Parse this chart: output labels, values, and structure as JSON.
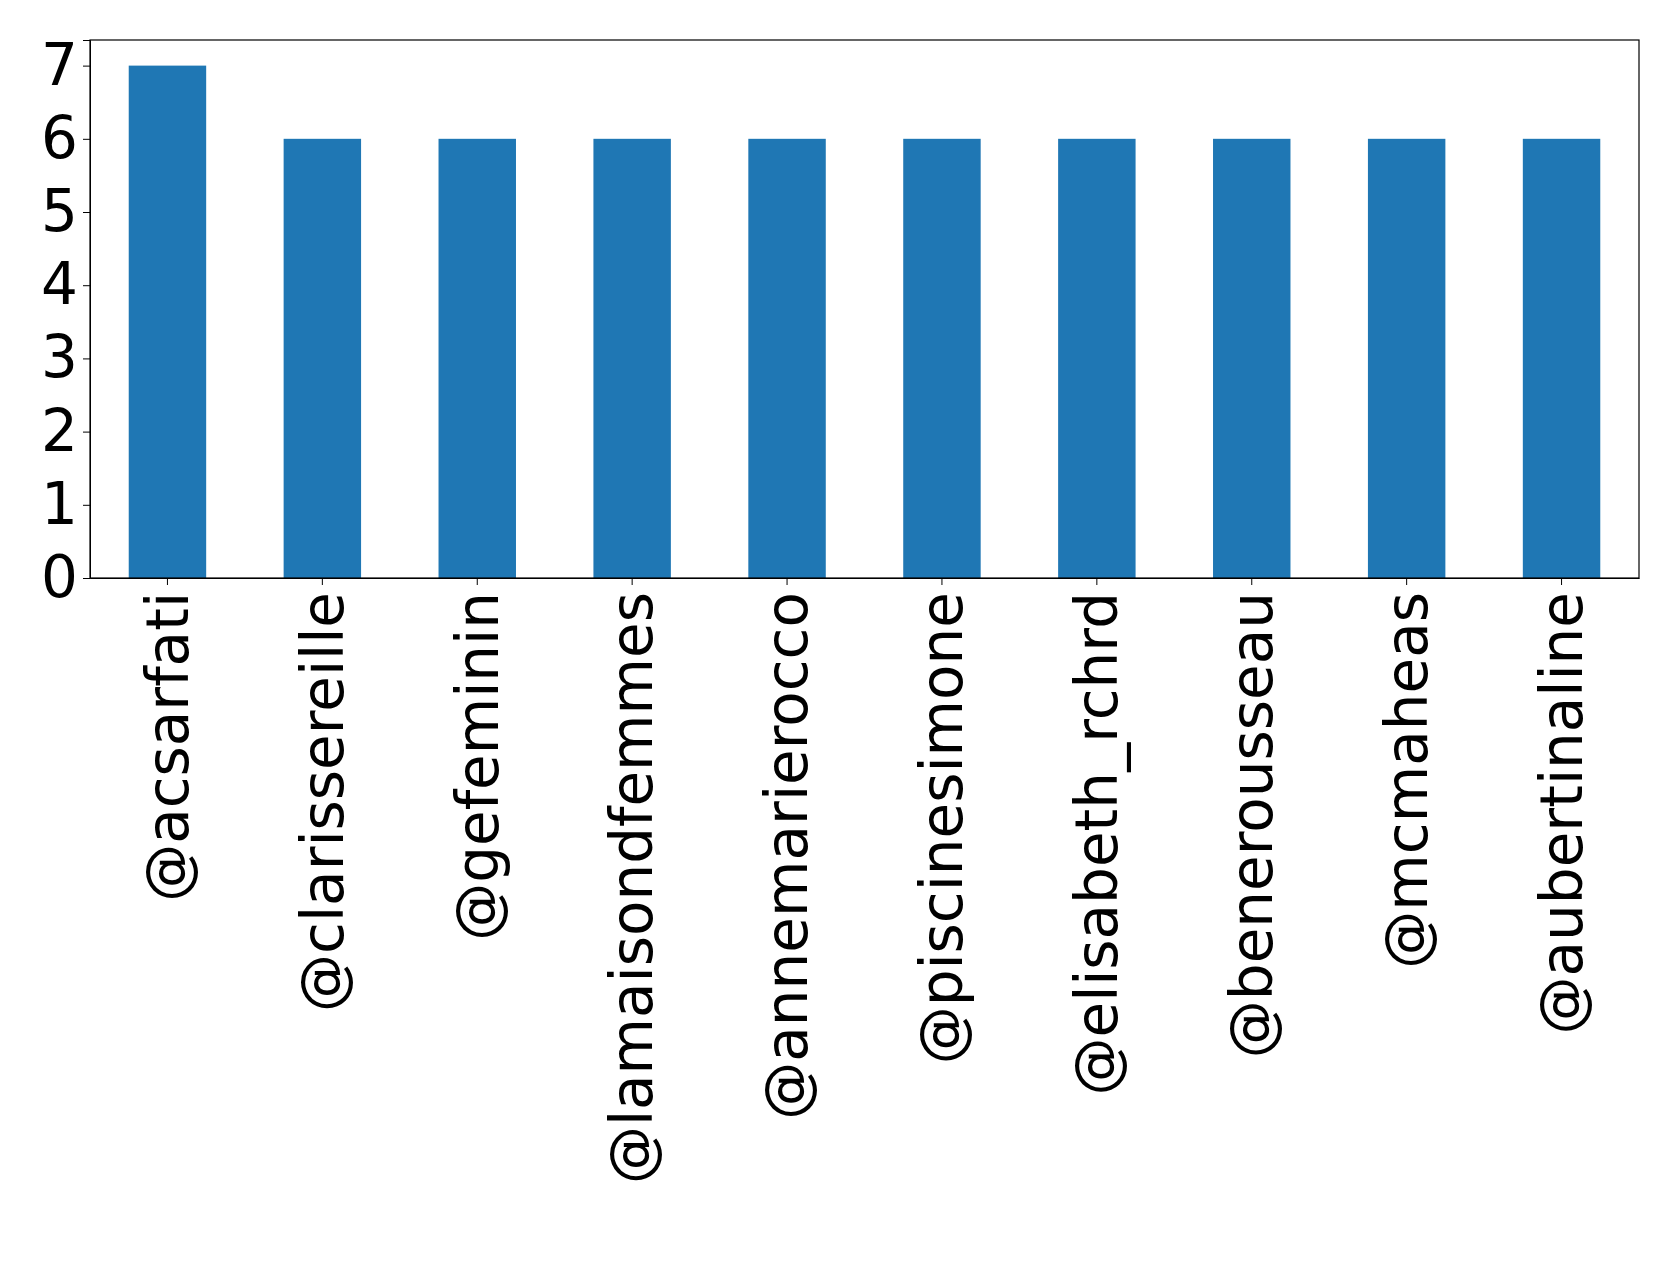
{
  "chart_data": {
    "type": "bar",
    "categories": [
      "@acsarfati",
      "@clarissereille",
      "@gefeminin",
      "@lamaisondfemmes",
      "@annemarierocco",
      "@piscinesimone",
      "@elisabeth_rchrd",
      "@benerousseau",
      "@mcmaheas",
      "@aubertinaline"
    ],
    "values": [
      7,
      6,
      6,
      6,
      6,
      6,
      6,
      6,
      6,
      6
    ],
    "color": "#1f77b4",
    "ylim": [
      0,
      7.35
    ],
    "yticks": [
      0,
      1,
      2,
      3,
      4,
      5,
      6,
      7
    ],
    "grid": false
  }
}
